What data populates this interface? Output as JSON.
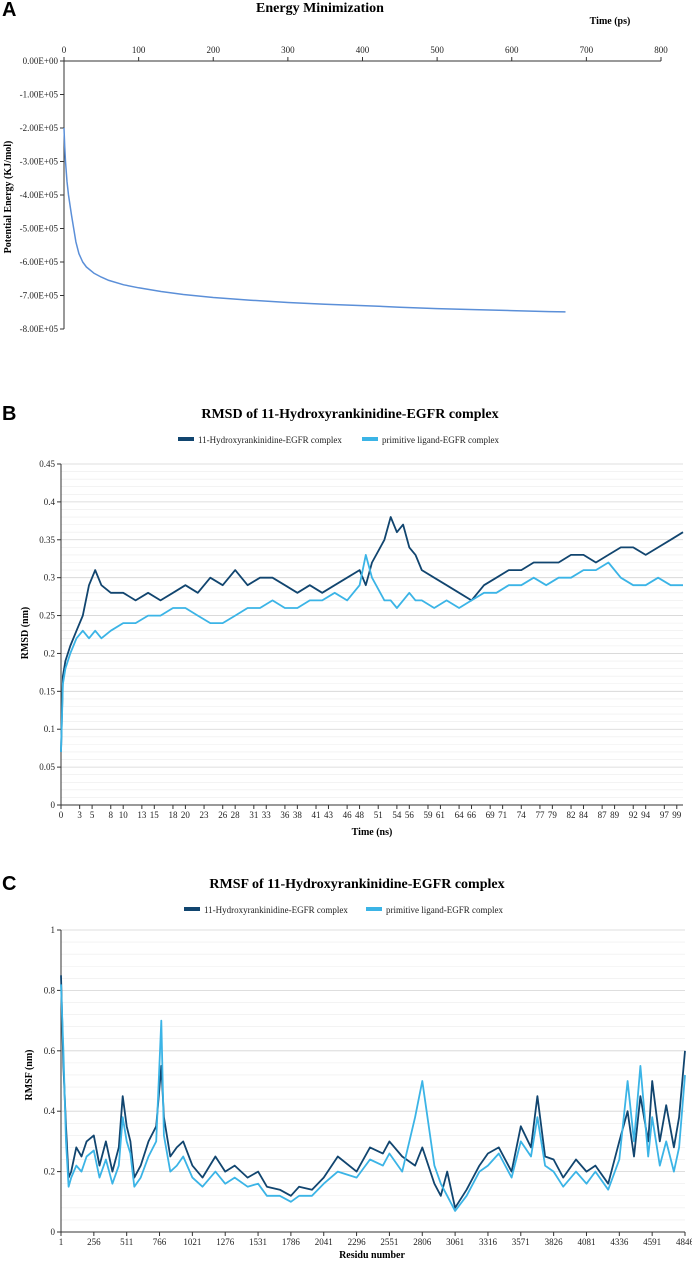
{
  "figure": {
    "panels": [
      "A",
      "B",
      "C"
    ]
  },
  "chart_data": [
    {
      "id": "A",
      "type": "line",
      "title": "Energy Minimization",
      "xlabel": "Time (ps)",
      "ylabel": "Potential Energy (KJ/mol)",
      "xlim": [
        0,
        800
      ],
      "ylim": [
        -800000,
        0
      ],
      "x_ticks": [
        0,
        100,
        200,
        300,
        400,
        500,
        600,
        700,
        800
      ],
      "y_ticks": [
        0,
        -100000,
        -200000,
        -300000,
        -400000,
        -500000,
        -600000,
        -700000,
        -800000
      ],
      "y_tick_labels": [
        "0.00E+00",
        "-1.00E+05",
        "-2.00E+05",
        "-3.00E+05",
        "-4.00E+05",
        "-5.00E+05",
        "-6.00E+05",
        "-7.00E+05",
        "-8.00E+05"
      ],
      "x_axis_position": "top",
      "color": "#5b8fd8",
      "series": [
        {
          "name": "Potential Energy",
          "x": [
            0,
            1,
            2,
            4,
            6,
            8,
            10,
            13,
            16,
            20,
            25,
            30,
            40,
            50,
            60,
            80,
            100,
            130,
            160,
            200,
            250,
            300,
            350,
            400,
            450,
            500,
            550,
            600,
            650,
            672
          ],
          "y": [
            -200000,
            -255000,
            -300000,
            -360000,
            -400000,
            -430000,
            -460000,
            -500000,
            -540000,
            -575000,
            -600000,
            -615000,
            -633000,
            -645000,
            -655000,
            -668000,
            -677000,
            -688000,
            -697000,
            -706000,
            -714000,
            -721000,
            -726000,
            -730000,
            -735000,
            -739000,
            -742000,
            -745000,
            -748000,
            -749000
          ]
        }
      ]
    },
    {
      "id": "B",
      "type": "line",
      "title": "RMSD of 11-Hydroxyrankinidine-EGFR complex",
      "xlabel": "Time (ns)",
      "ylabel": "RMSD (nm)",
      "xlim": [
        0,
        100
      ],
      "ylim": [
        0,
        0.45
      ],
      "x_ticks": [
        0,
        3,
        5,
        8,
        10,
        13,
        15,
        18,
        20,
        23,
        26,
        28,
        31,
        33,
        36,
        38,
        41,
        43,
        46,
        48,
        51,
        54,
        56,
        59,
        61,
        64,
        66,
        69,
        71,
        74,
        77,
        79,
        82,
        84,
        87,
        89,
        92,
        94,
        97,
        99
      ],
      "y_ticks": [
        0,
        0.05,
        0.1,
        0.15,
        0.2,
        0.25,
        0.3,
        0.35,
        0.4,
        0.45
      ],
      "y_tick_labels": [
        "0",
        "0.05",
        "0.1",
        "0.15",
        "0.2",
        "0.25",
        "0.3",
        "0.35",
        "0.4",
        "0.45"
      ],
      "legend": "top",
      "series": [
        {
          "name": "11-Hydroxyrankinidine-EGFR complex",
          "color": "#11456f",
          "x": [
            0,
            0.3,
            0.7,
            1.5,
            2.5,
            3.5,
            4.5,
            5.5,
            6.5,
            8,
            10,
            12,
            14,
            16,
            18,
            20,
            22,
            24,
            26,
            28,
            30,
            32,
            34,
            36,
            38,
            40,
            42,
            44,
            46,
            48,
            49,
            50,
            52,
            53,
            54,
            55,
            56,
            57,
            58,
            60,
            62,
            64,
            66,
            68,
            70,
            72,
            74,
            76,
            78,
            80,
            82,
            84,
            86,
            88,
            90,
            92,
            94,
            96,
            98,
            100
          ],
          "y": [
            0.07,
            0.17,
            0.19,
            0.21,
            0.23,
            0.25,
            0.29,
            0.31,
            0.29,
            0.28,
            0.28,
            0.27,
            0.28,
            0.27,
            0.28,
            0.29,
            0.28,
            0.3,
            0.29,
            0.31,
            0.29,
            0.3,
            0.3,
            0.29,
            0.28,
            0.29,
            0.28,
            0.29,
            0.3,
            0.31,
            0.29,
            0.32,
            0.35,
            0.38,
            0.36,
            0.37,
            0.34,
            0.33,
            0.31,
            0.3,
            0.29,
            0.28,
            0.27,
            0.29,
            0.3,
            0.31,
            0.31,
            0.32,
            0.32,
            0.32,
            0.33,
            0.33,
            0.32,
            0.33,
            0.34,
            0.34,
            0.33,
            0.34,
            0.35,
            0.36
          ]
        },
        {
          "name": "primitive ligand-EGFR complex",
          "color": "#3bb4e6",
          "x": [
            0,
            0.3,
            0.7,
            1.5,
            2.5,
            3.5,
            4.5,
            5.5,
            6.5,
            8,
            10,
            12,
            14,
            16,
            18,
            20,
            22,
            24,
            26,
            28,
            30,
            32,
            34,
            36,
            38,
            40,
            42,
            44,
            46,
            48,
            49,
            50,
            52,
            53,
            54,
            55,
            56,
            57,
            58,
            60,
            62,
            64,
            66,
            68,
            70,
            72,
            74,
            76,
            78,
            80,
            82,
            84,
            86,
            88,
            90,
            92,
            94,
            96,
            98,
            100
          ],
          "y": [
            0.07,
            0.16,
            0.18,
            0.2,
            0.22,
            0.23,
            0.22,
            0.23,
            0.22,
            0.23,
            0.24,
            0.24,
            0.25,
            0.25,
            0.26,
            0.26,
            0.25,
            0.24,
            0.24,
            0.25,
            0.26,
            0.26,
            0.27,
            0.26,
            0.26,
            0.27,
            0.27,
            0.28,
            0.27,
            0.29,
            0.33,
            0.3,
            0.27,
            0.27,
            0.26,
            0.27,
            0.28,
            0.27,
            0.27,
            0.26,
            0.27,
            0.26,
            0.27,
            0.28,
            0.28,
            0.29,
            0.29,
            0.3,
            0.29,
            0.3,
            0.3,
            0.31,
            0.31,
            0.32,
            0.3,
            0.29,
            0.29,
            0.3,
            0.29,
            0.29
          ]
        }
      ]
    },
    {
      "id": "C",
      "type": "line",
      "title": "RMSF of 11-Hydroxyrankinidine-EGFR complex",
      "xlabel": "Residu number",
      "ylabel": "RMSF (nm)",
      "xlim": [
        1,
        4846
      ],
      "ylim": [
        0,
        1
      ],
      "x_ticks": [
        1,
        256,
        511,
        766,
        1021,
        1276,
        1531,
        1786,
        2041,
        2296,
        2551,
        2806,
        3061,
        3316,
        3571,
        3826,
        4081,
        4336,
        4591,
        4846
      ],
      "y_ticks": [
        0,
        0.2,
        0.4,
        0.6,
        0.8,
        1
      ],
      "y_tick_labels": [
        "0",
        "0.2",
        "0.4",
        "0.6",
        "0.8",
        "1"
      ],
      "legend": "top",
      "series": [
        {
          "name": "11-Hydroxyrankinidine-EGFR complex",
          "color": "#11456f",
          "x": [
            1,
            20,
            40,
            60,
            80,
            120,
            160,
            200,
            256,
            300,
            350,
            400,
            450,
            480,
            511,
            540,
            570,
            620,
            680,
            740,
            780,
            800,
            850,
            900,
            950,
            1021,
            1100,
            1200,
            1276,
            1350,
            1450,
            1531,
            1600,
            1700,
            1786,
            1850,
            1950,
            2041,
            2150,
            2296,
            2400,
            2500,
            2551,
            2650,
            2750,
            2806,
            2900,
            2950,
            3000,
            3061,
            3150,
            3250,
            3316,
            3400,
            3500,
            3571,
            3650,
            3700,
            3760,
            3826,
            3900,
            4000,
            4081,
            4150,
            4250,
            4336,
            4400,
            4450,
            4500,
            4560,
            4591,
            4650,
            4700,
            4760,
            4800,
            4846
          ],
          "y": [
            0.85,
            0.55,
            0.35,
            0.18,
            0.2,
            0.28,
            0.25,
            0.3,
            0.32,
            0.22,
            0.3,
            0.2,
            0.28,
            0.45,
            0.35,
            0.3,
            0.18,
            0.22,
            0.3,
            0.35,
            0.55,
            0.38,
            0.25,
            0.28,
            0.3,
            0.22,
            0.18,
            0.25,
            0.2,
            0.22,
            0.18,
            0.2,
            0.15,
            0.14,
            0.12,
            0.15,
            0.14,
            0.18,
            0.25,
            0.2,
            0.28,
            0.26,
            0.3,
            0.25,
            0.22,
            0.28,
            0.16,
            0.12,
            0.2,
            0.08,
            0.14,
            0.22,
            0.26,
            0.28,
            0.2,
            0.35,
            0.28,
            0.45,
            0.25,
            0.24,
            0.18,
            0.24,
            0.2,
            0.22,
            0.16,
            0.3,
            0.4,
            0.25,
            0.45,
            0.3,
            0.5,
            0.3,
            0.42,
            0.28,
            0.38,
            0.6
          ]
        },
        {
          "name": "primitive ligand-EGFR complex",
          "color": "#3bb4e6",
          "x": [
            1,
            20,
            40,
            60,
            80,
            120,
            160,
            200,
            256,
            300,
            350,
            400,
            450,
            480,
            511,
            540,
            570,
            620,
            680,
            740,
            780,
            800,
            850,
            900,
            950,
            1021,
            1100,
            1200,
            1276,
            1350,
            1450,
            1531,
            1600,
            1700,
            1786,
            1850,
            1950,
            2041,
            2150,
            2296,
            2400,
            2500,
            2551,
            2650,
            2750,
            2806,
            2900,
            2950,
            3000,
            3061,
            3150,
            3250,
            3316,
            3400,
            3500,
            3571,
            3650,
            3700,
            3760,
            3826,
            3900,
            4000,
            4081,
            4150,
            4250,
            4336,
            4400,
            4450,
            4500,
            4560,
            4591,
            4650,
            4700,
            4760,
            4800,
            4846
          ],
          "y": [
            0.82,
            0.6,
            0.3,
            0.15,
            0.18,
            0.22,
            0.2,
            0.25,
            0.27,
            0.18,
            0.24,
            0.16,
            0.22,
            0.38,
            0.3,
            0.26,
            0.15,
            0.18,
            0.25,
            0.3,
            0.7,
            0.32,
            0.2,
            0.22,
            0.25,
            0.18,
            0.15,
            0.2,
            0.16,
            0.18,
            0.15,
            0.16,
            0.12,
            0.12,
            0.1,
            0.12,
            0.12,
            0.16,
            0.2,
            0.18,
            0.24,
            0.22,
            0.26,
            0.2,
            0.38,
            0.5,
            0.22,
            0.16,
            0.12,
            0.07,
            0.12,
            0.2,
            0.22,
            0.26,
            0.18,
            0.3,
            0.25,
            0.38,
            0.22,
            0.2,
            0.15,
            0.2,
            0.16,
            0.2,
            0.14,
            0.24,
            0.5,
            0.3,
            0.55,
            0.25,
            0.38,
            0.22,
            0.3,
            0.2,
            0.28,
            0.52
          ]
        }
      ]
    }
  ]
}
